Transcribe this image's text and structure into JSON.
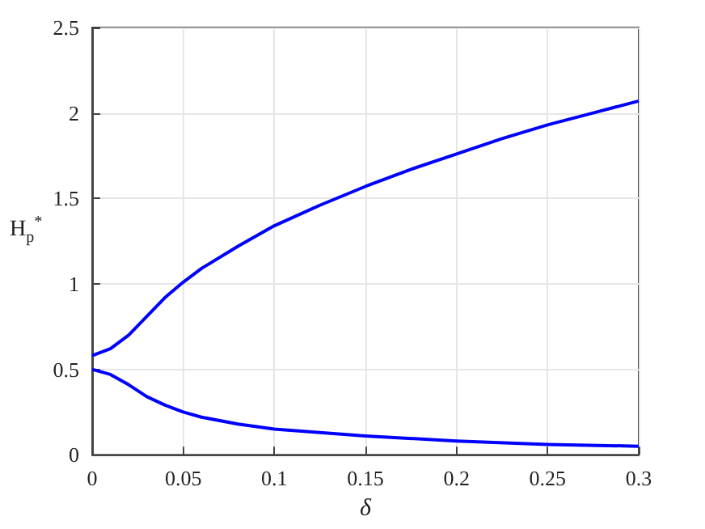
{
  "chart_data": {
    "type": "line",
    "xlabel": "δ",
    "ylabel": "H$_{p}$$^{*}$",
    "xlim": [
      0,
      0.3
    ],
    "xticks": [
      0,
      0.05,
      0.1,
      0.15,
      0.2,
      0.25,
      0.3
    ],
    "ylim": [
      0,
      2.5
    ],
    "yticks": [
      0,
      0.5,
      1,
      1.5,
      2,
      2.5
    ],
    "grid": true,
    "marker": "none",
    "line_style": "solid",
    "series": [
      {
        "color": "#0000ff",
        "x": [
          0,
          0.01,
          0.02,
          0.03,
          0.04,
          0.05,
          0.06,
          0.08,
          0.1,
          0.125,
          0.15,
          0.175,
          0.2,
          0.225,
          0.25,
          0.275,
          0.3
        ],
        "values": [
          0.58,
          0.62,
          0.7,
          0.81,
          0.92,
          1.01,
          1.09,
          1.22,
          1.34,
          1.46,
          1.57,
          1.67,
          1.76,
          1.85,
          1.93,
          2.0,
          2.07
        ]
      },
      {
        "color": "#0000ff",
        "x": [
          0,
          0.01,
          0.02,
          0.03,
          0.04,
          0.05,
          0.06,
          0.08,
          0.1,
          0.125,
          0.15,
          0.2,
          0.25,
          0.3
        ],
        "values": [
          0.5,
          0.47,
          0.41,
          0.34,
          0.29,
          0.25,
          0.22,
          0.18,
          0.15,
          0.13,
          0.11,
          0.08,
          0.06,
          0.05
        ]
      }
    ]
  }
}
